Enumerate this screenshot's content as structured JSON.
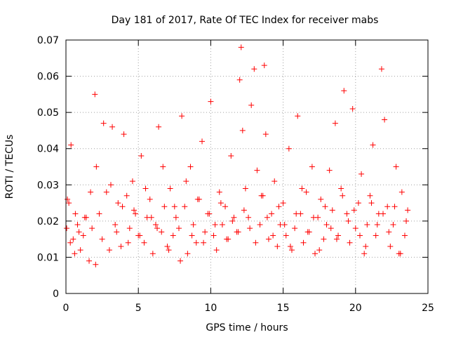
{
  "chart_data": {
    "type": "scatter",
    "title": "Day 181 of 2017, Rate Of TEC Index for receiver mabs",
    "xlabel": "GPS time / hours",
    "ylabel": "ROTI / TECUs",
    "xlim": [
      0,
      25
    ],
    "ylim": [
      0,
      0.07
    ],
    "xticks": [
      0,
      5,
      10,
      15,
      20,
      25
    ],
    "xtick_labels": [
      "0",
      "5",
      "10",
      "15",
      "20",
      "25"
    ],
    "yticks": [
      0,
      0.01,
      0.02,
      0.03,
      0.04,
      0.05,
      0.06,
      0.07
    ],
    "ytick_labels": [
      "0",
      "0.01",
      "0.02",
      "0.03",
      "0.04",
      "0.05",
      "0.06",
      "0.07"
    ],
    "grid": true,
    "marker": "+",
    "color": "#ff0000",
    "series": [
      {
        "name": "ROTI",
        "x": [
          0.05,
          0.2,
          0.35,
          0.5,
          0.65,
          0.8,
          1.0,
          1.2,
          1.4,
          1.6,
          1.8,
          2.0,
          2.1,
          2.3,
          2.5,
          2.8,
          3.0,
          3.2,
          3.4,
          3.6,
          3.8,
          4.0,
          4.2,
          4.4,
          4.6,
          4.8,
          5.0,
          5.2,
          5.4,
          5.6,
          5.8,
          6.0,
          6.2,
          6.4,
          6.6,
          6.8,
          7.0,
          7.2,
          7.4,
          7.6,
          7.8,
          8.0,
          8.2,
          8.4,
          8.6,
          8.8,
          9.0,
          9.2,
          9.4,
          9.6,
          9.8,
          10.0,
          10.2,
          10.4,
          10.6,
          10.8,
          11.0,
          11.2,
          11.4,
          11.6,
          11.8,
          12.0,
          12.1,
          12.2,
          12.4,
          12.6,
          12.8,
          13.0,
          13.2,
          13.4,
          13.6,
          13.7,
          13.8,
          14.0,
          14.2,
          14.4,
          14.6,
          14.8,
          15.0,
          15.2,
          15.4,
          15.6,
          15.8,
          16.0,
          16.2,
          16.4,
          16.6,
          16.8,
          17.0,
          17.2,
          17.4,
          17.6,
          17.8,
          18.0,
          18.2,
          18.4,
          18.6,
          18.8,
          19.0,
          19.2,
          19.4,
          19.6,
          19.8,
          20.0,
          20.2,
          20.4,
          20.6,
          20.8,
          21.0,
          21.2,
          21.4,
          21.6,
          21.8,
          22.0,
          22.2,
          22.4,
          22.6,
          22.8,
          23.0,
          23.2,
          23.4,
          23.6,
          0.1,
          0.3,
          0.6,
          0.9,
          1.3,
          1.7,
          2.05,
          2.6,
          3.1,
          3.5,
          3.9,
          4.3,
          4.7,
          5.1,
          5.5,
          5.9,
          6.3,
          6.7,
          7.1,
          7.5,
          7.9,
          8.3,
          8.7,
          9.1,
          9.5,
          9.9,
          10.3,
          10.7,
          11.1,
          11.5,
          11.9,
          12.3,
          12.7,
          13.1,
          13.5,
          13.9,
          14.3,
          14.7,
          15.1,
          15.5,
          15.9,
          16.3,
          16.7,
          17.1,
          17.5,
          17.9,
          18.3,
          18.7,
          19.1,
          19.5,
          19.9,
          20.3,
          20.7,
          21.1,
          21.5,
          21.9,
          22.3,
          22.7,
          23.1,
          23.5
        ],
        "y": [
          0.018,
          0.025,
          0.041,
          0.015,
          0.022,
          0.019,
          0.012,
          0.016,
          0.021,
          0.009,
          0.018,
          0.055,
          0.035,
          0.022,
          0.015,
          0.028,
          0.012,
          0.046,
          0.019,
          0.025,
          0.013,
          0.044,
          0.027,
          0.018,
          0.031,
          0.022,
          0.016,
          0.038,
          0.014,
          0.021,
          0.026,
          0.011,
          0.019,
          0.046,
          0.017,
          0.024,
          0.013,
          0.029,
          0.016,
          0.021,
          0.018,
          0.049,
          0.024,
          0.011,
          0.035,
          0.019,
          0.014,
          0.026,
          0.042,
          0.017,
          0.022,
          0.053,
          0.016,
          0.012,
          0.028,
          0.019,
          0.024,
          0.015,
          0.038,
          0.021,
          0.017,
          0.059,
          0.068,
          0.045,
          0.029,
          0.021,
          0.052,
          0.062,
          0.034,
          0.019,
          0.027,
          0.063,
          0.044,
          0.015,
          0.022,
          0.031,
          0.013,
          0.019,
          0.025,
          0.016,
          0.04,
          0.012,
          0.018,
          0.049,
          0.022,
          0.014,
          0.028,
          0.017,
          0.035,
          0.011,
          0.021,
          0.026,
          0.015,
          0.019,
          0.034,
          0.023,
          0.047,
          0.016,
          0.029,
          0.056,
          0.022,
          0.014,
          0.051,
          0.018,
          0.025,
          0.033,
          0.011,
          0.019,
          0.027,
          0.041,
          0.016,
          0.022,
          0.062,
          0.048,
          0.024,
          0.013,
          0.019,
          0.035,
          0.011,
          0.028,
          0.016,
          0.023,
          0.026,
          0.014,
          0.011,
          0.017,
          0.021,
          0.028,
          0.008,
          0.047,
          0.03,
          0.017,
          0.024,
          0.014,
          0.023,
          0.016,
          0.029,
          0.021,
          0.018,
          0.035,
          0.012,
          0.024,
          0.009,
          0.031,
          0.016,
          0.026,
          0.014,
          0.022,
          0.019,
          0.025,
          0.015,
          0.02,
          0.017,
          0.023,
          0.018,
          0.014,
          0.027,
          0.021,
          0.016,
          0.024,
          0.019,
          0.013,
          0.022,
          0.029,
          0.017,
          0.021,
          0.012,
          0.024,
          0.018,
          0.015,
          0.027,
          0.02,
          0.023,
          0.016,
          0.013,
          0.025,
          0.019,
          0.022,
          0.017,
          0.024,
          0.011,
          0.02
        ]
      }
    ]
  }
}
